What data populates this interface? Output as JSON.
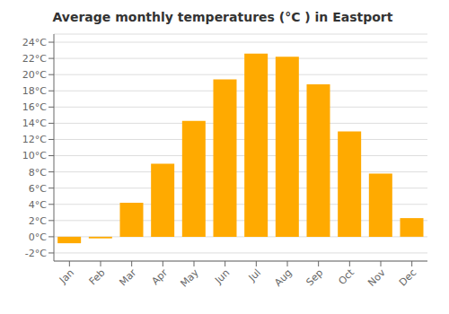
{
  "chart_data": {
    "type": "bar",
    "title": "Average monthly temperatures (°C ) in Eastport",
    "categories": [
      "Jan",
      "Feb",
      "Mar",
      "Apr",
      "May",
      "Jun",
      "Jul",
      "Aug",
      "Sep",
      "Oct",
      "Nov",
      "Dec"
    ],
    "values": [
      -0.8,
      -0.2,
      4.2,
      9.0,
      14.3,
      19.4,
      22.6,
      22.2,
      18.8,
      13.0,
      7.8,
      2.3
    ],
    "color": "#FFAA00",
    "ylim": [
      -3,
      25
    ],
    "yticks": [
      {
        "value": -2,
        "label": "-2°C"
      },
      {
        "value": 0,
        "label": "0°C"
      },
      {
        "value": 2,
        "label": "2°C"
      },
      {
        "value": 4,
        "label": "4°C"
      },
      {
        "value": 6,
        "label": "6°C"
      },
      {
        "value": 8,
        "label": "8°C"
      },
      {
        "value": 10,
        "label": "10°C"
      },
      {
        "value": 12,
        "label": "12°C"
      },
      {
        "value": 14,
        "label": "14°C"
      },
      {
        "value": 16,
        "label": "16°C"
      },
      {
        "value": 18,
        "label": "18°C"
      },
      {
        "value": 20,
        "label": "20°C"
      },
      {
        "value": 22,
        "label": "22°C"
      },
      {
        "value": 24,
        "label": "24°C"
      }
    ],
    "grid": true
  }
}
